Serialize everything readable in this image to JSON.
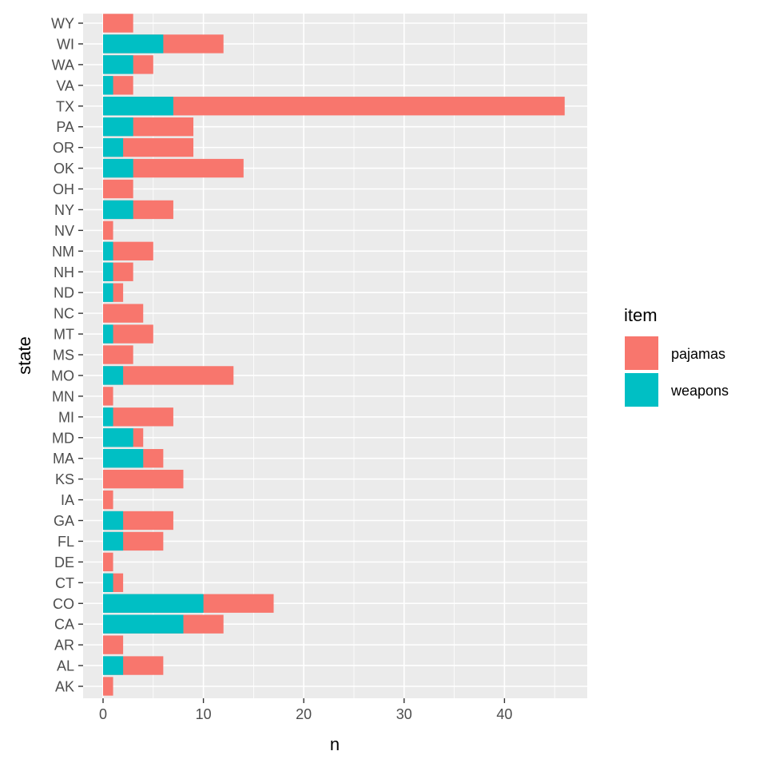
{
  "chart_data": {
    "type": "bar",
    "orientation": "horizontal",
    "stacked": true,
    "title": "",
    "xlabel": "n",
    "ylabel": "state",
    "xlim": [
      0,
      46
    ],
    "x_ticks": [
      0,
      10,
      20,
      30,
      40
    ],
    "grid": true,
    "legend_position": "right",
    "legend_title": "item",
    "categories": [
      "WY",
      "WI",
      "WA",
      "VA",
      "TX",
      "PA",
      "OR",
      "OK",
      "OH",
      "NY",
      "NV",
      "NM",
      "NH",
      "ND",
      "NC",
      "MT",
      "MS",
      "MO",
      "MN",
      "MI",
      "MD",
      "MA",
      "KS",
      "IA",
      "GA",
      "FL",
      "DE",
      "CT",
      "CO",
      "CA",
      "AR",
      "AL",
      "AK"
    ],
    "series": [
      {
        "name": "pajamas",
        "color": "#F8766D",
        "values": [
          3,
          6,
          2,
          2,
          39,
          6,
          7,
          11,
          3,
          4,
          1,
          4,
          2,
          1,
          4,
          4,
          3,
          11,
          1,
          6,
          1,
          2,
          8,
          1,
          5,
          4,
          1,
          1,
          7,
          4,
          2,
          4,
          1
        ]
      },
      {
        "name": "weapons",
        "color": "#00BFC4",
        "values": [
          0,
          6,
          3,
          1,
          7,
          3,
          2,
          3,
          0,
          3,
          0,
          1,
          1,
          1,
          0,
          1,
          0,
          2,
          0,
          1,
          3,
          4,
          0,
          0,
          2,
          2,
          0,
          1,
          10,
          8,
          0,
          2,
          0
        ]
      }
    ]
  }
}
